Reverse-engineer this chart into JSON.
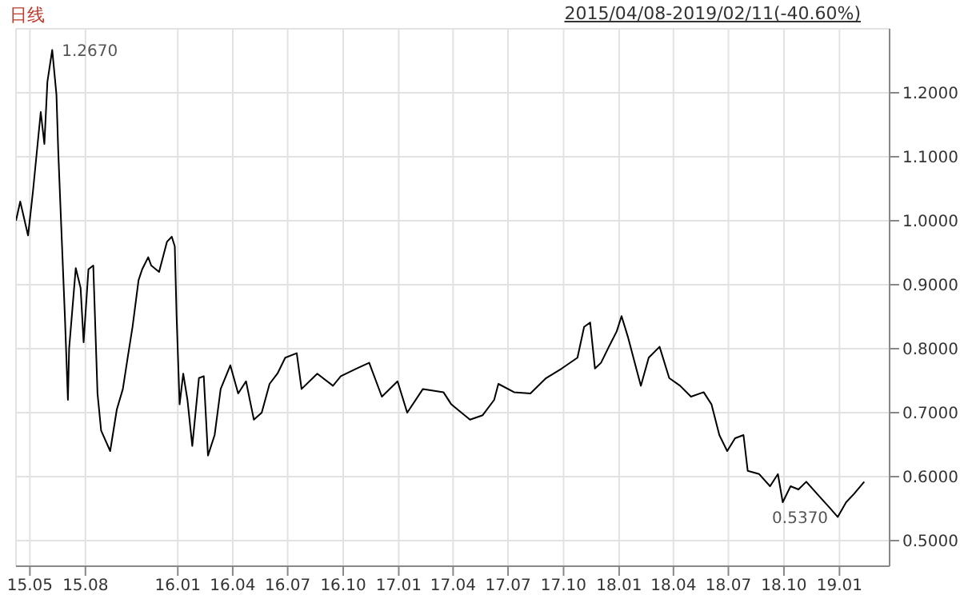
{
  "chart_data": {
    "type": "line",
    "title": "日线",
    "subtitle": "2015/04/08-2019/02/11(-40.60%)",
    "x": [
      "2015-04-08",
      "2015-04-15",
      "2015-04-28",
      "2015-05-06",
      "2015-05-19",
      "2015-05-25",
      "2015-05-30",
      "2015-06-07",
      "2015-06-14",
      "2015-06-17",
      "2015-06-22",
      "2015-06-28",
      "2015-07-03",
      "2015-07-05",
      "2015-07-16",
      "2015-07-24",
      "2015-07-29",
      "2015-08-06",
      "2015-08-14",
      "2015-08-21",
      "2015-08-27",
      "2015-09-11",
      "2015-09-22",
      "2015-10-02",
      "2015-10-10",
      "2015-10-18",
      "2015-10-28",
      "2015-11-03",
      "2015-11-13",
      "2015-11-18",
      "2015-12-01",
      "2015-12-14",
      "2015-12-22",
      "2015-12-27",
      "2015-12-30",
      "2016-01-04",
      "2016-01-10",
      "2016-01-17",
      "2016-01-25",
      "2016-02-05",
      "2016-02-13",
      "2016-02-20",
      "2016-03-02",
      "2016-03-12",
      "2016-03-28",
      "2016-04-10",
      "2016-04-23",
      "2016-05-06",
      "2016-05-19",
      "2016-06-01",
      "2016-06-14",
      "2016-06-27",
      "2016-07-16",
      "2016-07-24",
      "2016-08-19",
      "2016-09-14",
      "2016-09-27",
      "2016-10-23",
      "2016-11-13",
      "2016-12-04",
      "2016-12-30",
      "2017-01-15",
      "2017-02-10",
      "2017-03-16",
      "2017-03-29",
      "2017-04-29",
      "2017-05-20",
      "2017-06-08",
      "2017-06-15",
      "2017-07-11",
      "2017-08-07",
      "2017-09-02",
      "2017-09-28",
      "2017-10-24",
      "2017-11-04",
      "2017-11-14",
      "2017-11-22",
      "2017-12-02",
      "2017-12-15",
      "2017-12-28",
      "2018-01-05",
      "2018-01-16",
      "2018-02-06",
      "2018-02-19",
      "2018-03-09",
      "2018-03-25",
      "2018-04-12",
      "2018-04-30",
      "2018-05-21",
      "2018-06-03",
      "2018-06-16",
      "2018-06-29",
      "2018-07-12",
      "2018-07-26",
      "2018-08-02",
      "2018-08-21",
      "2018-09-08",
      "2018-09-21",
      "2018-09-29",
      "2018-10-12",
      "2018-10-25",
      "2018-11-07",
      "2018-11-25",
      "2018-12-16",
      "2018-12-29",
      "2019-01-12",
      "2019-01-25",
      "2019-02-11"
    ],
    "series": [
      {
        "color": "#000000",
        "values": [
          1.0,
          1.03,
          0.977,
          1.045,
          1.17,
          1.12,
          1.217,
          1.267,
          1.197,
          1.108,
          0.99,
          0.85,
          0.72,
          0.8,
          0.926,
          0.895,
          0.81,
          0.924,
          0.93,
          0.73,
          0.672,
          0.64,
          0.705,
          0.737,
          0.786,
          0.834,
          0.907,
          0.924,
          0.943,
          0.93,
          0.92,
          0.967,
          0.975,
          0.96,
          0.851,
          0.713,
          0.761,
          0.72,
          0.648,
          0.754,
          0.757,
          0.633,
          0.665,
          0.737,
          0.774,
          0.73,
          0.749,
          0.689,
          0.7,
          0.745,
          0.761,
          0.786,
          0.793,
          0.737,
          0.761,
          0.742,
          0.757,
          0.769,
          0.778,
          0.725,
          0.749,
          0.7,
          0.737,
          0.732,
          0.713,
          0.689,
          0.696,
          0.72,
          0.745,
          0.732,
          0.73,
          0.754,
          0.769,
          0.786,
          0.834,
          0.841,
          0.769,
          0.778,
          0.803,
          0.827,
          0.851,
          0.817,
          0.742,
          0.786,
          0.803,
          0.754,
          0.742,
          0.725,
          0.732,
          0.713,
          0.665,
          0.64,
          0.66,
          0.665,
          0.609,
          0.604,
          0.585,
          0.604,
          0.56,
          0.585,
          0.58,
          0.592,
          0.573,
          0.551,
          0.537,
          0.56,
          0.573,
          0.592
        ]
      }
    ],
    "xlim": [
      "2015-04-08",
      "2019-03-25"
    ],
    "xticks": [
      {
        "value": "2015-05-01",
        "label": "15.05"
      },
      {
        "value": "2015-08-01",
        "label": "15.08"
      },
      {
        "value": "2016-01-01",
        "label": "16.01"
      },
      {
        "value": "2016-04-01",
        "label": "16.04"
      },
      {
        "value": "2016-07-01",
        "label": "16.07"
      },
      {
        "value": "2016-10-01",
        "label": "16.10"
      },
      {
        "value": "2017-01-01",
        "label": "17.01"
      },
      {
        "value": "2017-04-01",
        "label": "17.04"
      },
      {
        "value": "2017-07-01",
        "label": "17.07"
      },
      {
        "value": "2017-10-01",
        "label": "17.10"
      },
      {
        "value": "2018-01-01",
        "label": "18.01"
      },
      {
        "value": "2018-04-01",
        "label": "18.04"
      },
      {
        "value": "2018-07-01",
        "label": "18.07"
      },
      {
        "value": "2018-10-01",
        "label": "18.10"
      },
      {
        "value": "2019-01-01",
        "label": "19.01"
      }
    ],
    "ylim": [
      0.46,
      1.3
    ],
    "yticks": [
      {
        "value": 0.5,
        "label": "0.5000"
      },
      {
        "value": 0.6,
        "label": "0.6000"
      },
      {
        "value": 0.7,
        "label": "0.7000"
      },
      {
        "value": 0.8,
        "label": "0.8000"
      },
      {
        "value": 0.9,
        "label": "0.9000"
      },
      {
        "value": 1.0,
        "label": "1.0000"
      },
      {
        "value": 1.1,
        "label": "1.1000"
      },
      {
        "value": 1.2,
        "label": "1.2000"
      }
    ],
    "annotations": [
      {
        "text": "1.2670",
        "x": "2015-06-07",
        "y": 1.267
      },
      {
        "text": "0.5370",
        "x": "2018-12-29",
        "y": 0.537
      }
    ],
    "grid": true,
    "legend": false,
    "marker": "none",
    "line_style": "solid"
  }
}
